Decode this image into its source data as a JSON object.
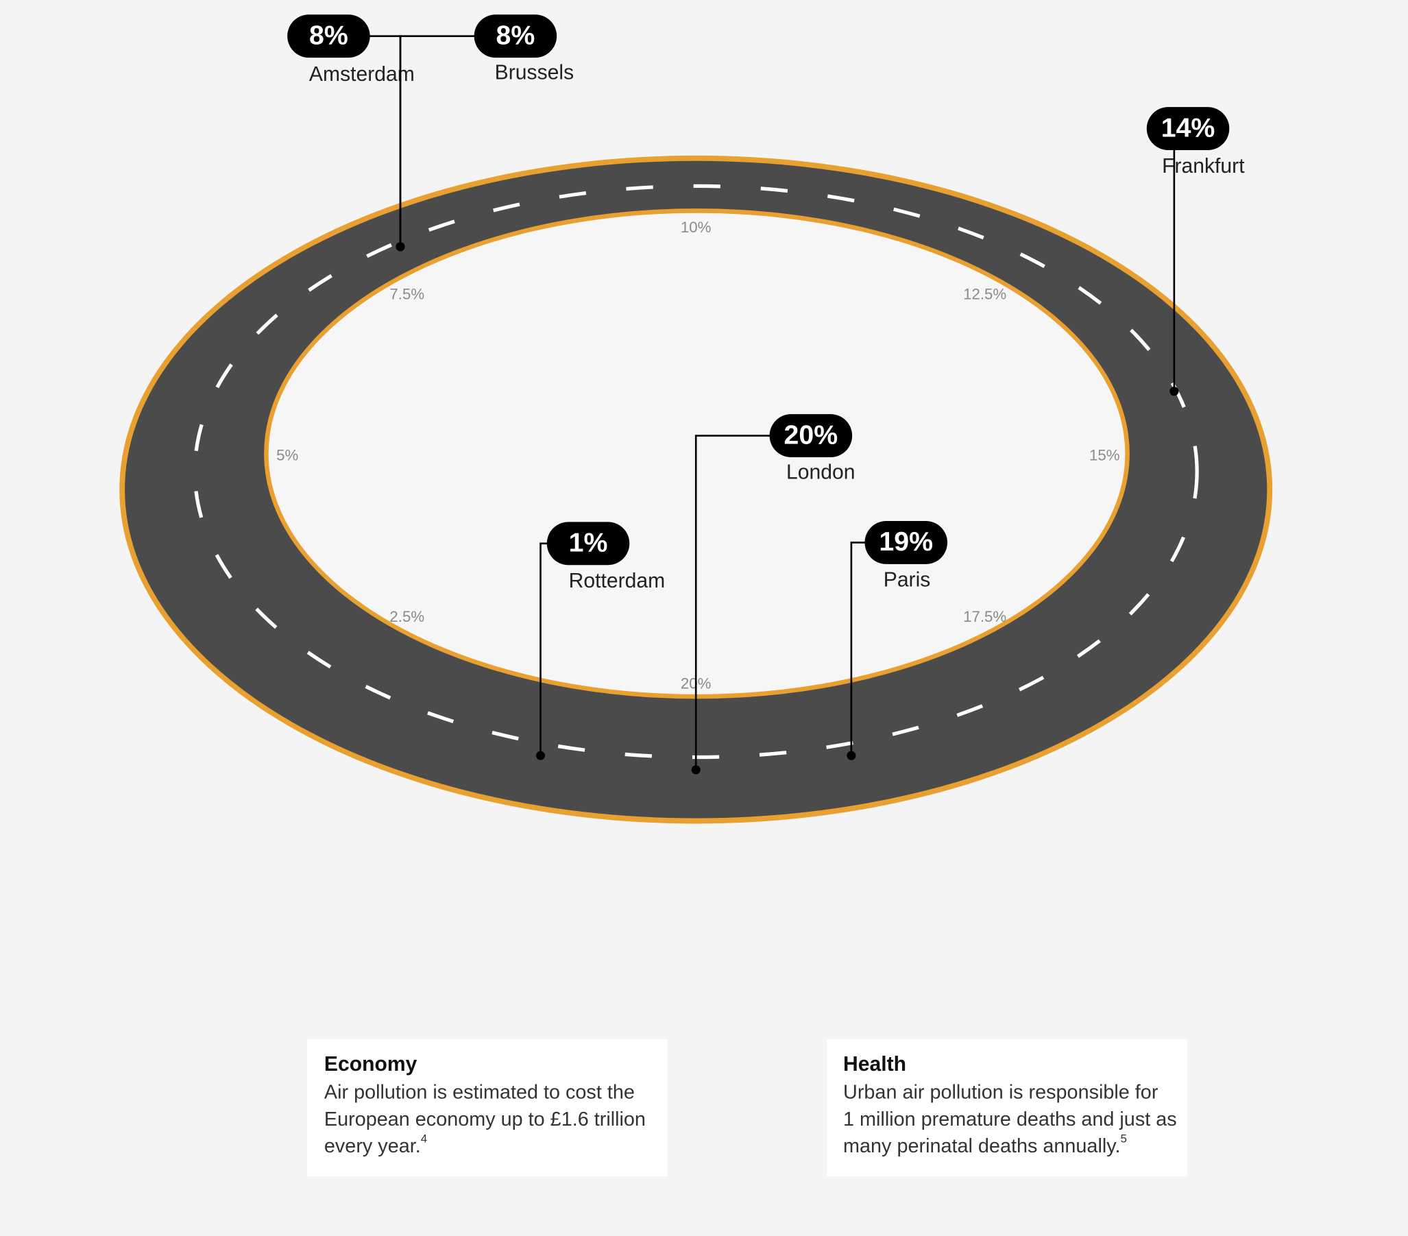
{
  "chart_data": {
    "type": "ring",
    "categories": [
      "Amsterdam",
      "Brussels",
      "Frankfurt",
      "London",
      "Paris",
      "Rotterdam"
    ],
    "values": [
      8,
      8,
      14,
      20,
      19,
      1
    ],
    "value_labels": [
      "8%",
      "8%",
      "14%",
      "20%",
      "19%",
      "1%"
    ],
    "color": "#000000",
    "ylim": [
      0,
      20
    ],
    "yticks": [
      {
        "value": 2.5,
        "label": "2.5%"
      },
      {
        "value": 5,
        "label": "5%"
      },
      {
        "value": 7.5,
        "label": "7.5%"
      },
      {
        "value": 10,
        "label": "10%"
      },
      {
        "value": 12.5,
        "label": "12.5%"
      },
      {
        "value": 15,
        "label": "15%"
      },
      {
        "value": 17.5,
        "label": "17.5%"
      },
      {
        "value": 20,
        "label": "20%"
      }
    ]
  },
  "panels": [
    {
      "title": "Economy",
      "lines": [
        "Air pollution is estimated to cost the",
        "European economy up to £1.6 trillion",
        "every year."
      ],
      "note": "4"
    },
    {
      "title": "Health",
      "lines": [
        "Urban air pollution is responsible for",
        "1 million premature deaths and just as",
        "many perinatal deaths annually."
      ],
      "note": "5"
    }
  ]
}
